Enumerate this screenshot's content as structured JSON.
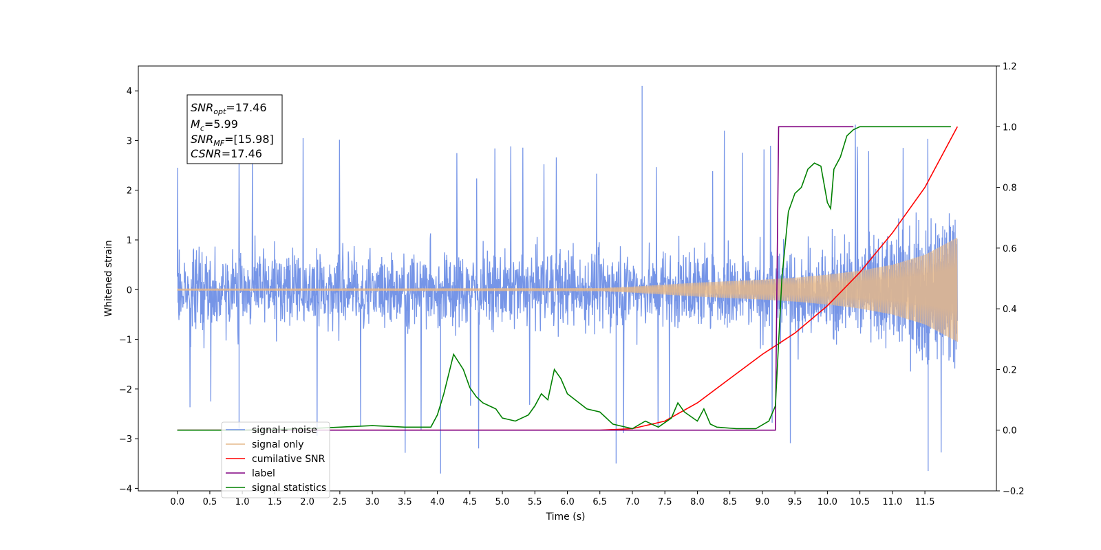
{
  "chart_data": {
    "type": "line",
    "xlabel": "Time (s)",
    "ylabel": "Whitened strain",
    "xlim": [
      -0.6,
      12.6
    ],
    "ylim": [
      -4.05,
      4.5
    ],
    "y2lim": [
      -0.2,
      1.2
    ],
    "x_ticks": [
      "0.0",
      "0.5",
      "1.0",
      "1.5",
      "2.0",
      "2.5",
      "3.0",
      "3.5",
      "4.0",
      "4.5",
      "5.0",
      "5.5",
      "6.0",
      "6.5",
      "7.0",
      "7.5",
      "8.0",
      "8.5",
      "9.0",
      "9.5",
      "10.0",
      "10.5",
      "11.0",
      "11.5"
    ],
    "y_ticks": [
      "4",
      "3",
      "2",
      "1",
      "0",
      "−1",
      "−2",
      "−3",
      "−4"
    ],
    "y2_ticks": [
      "1.2",
      "1.0",
      "0.8",
      "0.6",
      "0.4",
      "0.2",
      "0.0",
      "−0.2"
    ],
    "annotation": {
      "snr_opt": "=17.46",
      "mc": "=5.99",
      "snr_mf": "=[15.98]",
      "csnr": "=17.46"
    },
    "legend_position": "lower-left",
    "colors": {
      "signal_noise": "#6f8fe6",
      "signal_only": "#e6b88a",
      "cumulative_snr": "#ff0000",
      "label": "#800080",
      "statistics": "#008000"
    },
    "series": [
      {
        "name": "signal+ noise",
        "axis": "left",
        "description_envelope": {
          "x": [
            0,
            12
          ],
          "min_y": -3.7,
          "max_y": 4.1,
          "spikes": [
            [
              7.15,
              4.1
            ],
            [
              0.95,
              -2.8
            ],
            [
              4.05,
              -3.7
            ],
            [
              11.55,
              -3.65
            ],
            [
              6.75,
              -3.5
            ]
          ]
        }
      },
      {
        "name": "signal only",
        "axis": "left",
        "x": [
          0,
          6.5,
          7.0,
          7.5,
          8.0,
          8.5,
          9.0,
          9.5,
          10.0,
          10.5,
          11.0,
          11.5,
          12.0
        ],
        "amplitude": [
          0.02,
          0.03,
          0.06,
          0.1,
          0.14,
          0.17,
          0.2,
          0.24,
          0.3,
          0.38,
          0.5,
          0.7,
          1.05
        ]
      },
      {
        "name": "cumilative SNR",
        "axis": "right",
        "x": [
          0,
          6.5,
          7.0,
          7.5,
          8.0,
          8.5,
          9.0,
          9.5,
          10.0,
          10.5,
          11.0,
          11.5,
          12.0
        ],
        "values": [
          0.0,
          0.0,
          0.005,
          0.03,
          0.09,
          0.17,
          0.25,
          0.32,
          0.41,
          0.52,
          0.65,
          0.8,
          1.0
        ]
      },
      {
        "name": "label",
        "axis": "right",
        "x": [
          0,
          9.2,
          9.25,
          10.4
        ],
        "values": [
          0,
          0,
          1,
          1
        ]
      },
      {
        "name": "signal statistics",
        "axis": "right",
        "x": [
          0,
          1.0,
          2.0,
          2.5,
          3.0,
          3.5,
          3.9,
          4.0,
          4.1,
          4.25,
          4.4,
          4.5,
          4.6,
          4.7,
          4.8,
          4.9,
          5.0,
          5.2,
          5.4,
          5.5,
          5.6,
          5.7,
          5.8,
          5.9,
          6.0,
          6.3,
          6.5,
          6.7,
          7.0,
          7.2,
          7.4,
          7.6,
          7.7,
          7.8,
          8.0,
          8.1,
          8.2,
          8.3,
          8.6,
          8.9,
          9.1,
          9.2,
          9.3,
          9.4,
          9.5,
          9.6,
          9.7,
          9.8,
          9.9,
          10.0,
          10.05,
          10.1,
          10.2,
          10.3,
          10.4,
          10.5,
          11.0,
          11.5,
          11.9
        ],
        "values": [
          0.0,
          0.0,
          0.005,
          0.01,
          0.015,
          0.01,
          0.01,
          0.05,
          0.12,
          0.25,
          0.2,
          0.14,
          0.11,
          0.09,
          0.08,
          0.07,
          0.04,
          0.03,
          0.05,
          0.08,
          0.12,
          0.1,
          0.2,
          0.17,
          0.12,
          0.07,
          0.06,
          0.02,
          0.005,
          0.03,
          0.01,
          0.04,
          0.09,
          0.06,
          0.03,
          0.07,
          0.02,
          0.01,
          0.005,
          0.005,
          0.03,
          0.08,
          0.5,
          0.72,
          0.78,
          0.8,
          0.86,
          0.88,
          0.87,
          0.75,
          0.73,
          0.86,
          0.9,
          0.97,
          0.99,
          1.0,
          1.0,
          1.0,
          1.0
        ]
      }
    ]
  }
}
